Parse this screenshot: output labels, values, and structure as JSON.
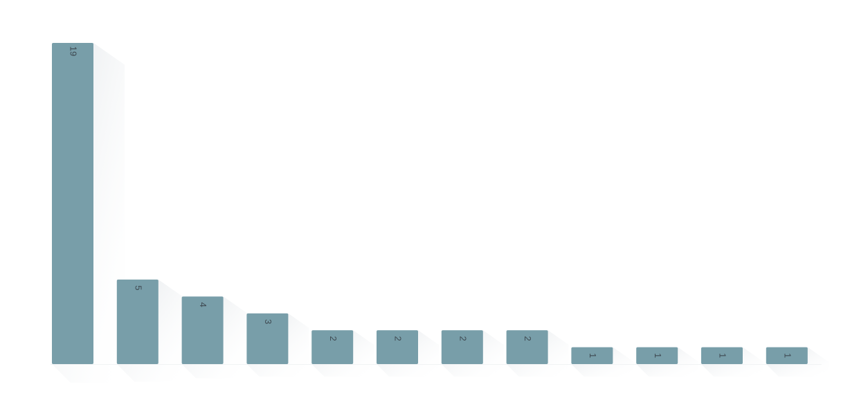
{
  "chart_data": {
    "type": "bar",
    "categories": [
      "",
      "",
      "",
      "",
      "",
      "",
      "",
      "",
      "",
      "",
      "",
      ""
    ],
    "values": [
      19,
      5,
      4,
      3,
      2,
      2,
      2,
      2,
      1,
      1,
      1,
      1
    ],
    "value_labels": [
      "19",
      "5",
      "4",
      "3",
      "2",
      "2",
      "2",
      "2",
      "1",
      "1",
      "1",
      "1"
    ],
    "title": "",
    "xlabel": "",
    "ylabel": "",
    "ylim": [
      0,
      19
    ],
    "grid": false,
    "legend": "none"
  },
  "colors": {
    "bar": "#789ea9",
    "bar_top": "#7fa6b0",
    "label": "#3f4a52",
    "baseline": "#f1f3f4"
  }
}
